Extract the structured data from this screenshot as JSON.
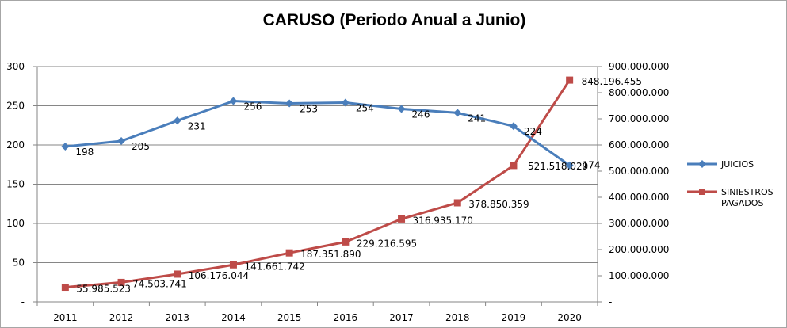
{
  "chart_data": {
    "type": "line",
    "title": "CARUSO (Periodo Anual a Junio)",
    "categories": [
      "2011",
      "2012",
      "2013",
      "2014",
      "2015",
      "2016",
      "2017",
      "2018",
      "2019",
      "2020"
    ],
    "y_left": {
      "min": 0,
      "max": 300,
      "step": 50,
      "tick_labels": [
        "-",
        "50",
        "100",
        "150",
        "200",
        "250",
        "300"
      ]
    },
    "y_right": {
      "min": 0,
      "max": 900000000,
      "step": 100000000,
      "tick_labels": [
        "-",
        "100.000.000",
        "200.000.000",
        "300.000.000",
        "400.000.000",
        "500.000.000",
        "600.000.000",
        "700.000.000",
        "800.000.000",
        "900.000.000"
      ]
    },
    "grid": true,
    "legend_position": "right",
    "series": [
      {
        "name": "JUICIOS",
        "axis": "left",
        "color": "#4a7ebb",
        "marker": "diamond",
        "values": [
          198,
          205,
          231,
          256,
          253,
          254,
          246,
          241,
          224,
          174
        ],
        "labels": [
          "198",
          "205",
          "231",
          "256",
          "253",
          "254",
          "246",
          "241",
          "224",
          "174"
        ]
      },
      {
        "name": "SINIESTROS PAGADOS",
        "legend_lines": [
          "SINIESTROS",
          "PAGADOS"
        ],
        "axis": "right",
        "color": "#be4b48",
        "marker": "square",
        "values": [
          55985523,
          74503741,
          106176044,
          141661742,
          187351890,
          229216595,
          316935170,
          378850359,
          521518029,
          848196455
        ],
        "labels": [
          "55.985.523",
          "74.503.741",
          "106.176.044",
          "141.661.742",
          "187.351.890",
          "229.216.595",
          "316.935.170",
          "378.850.359",
          "521.518.029",
          "848.196.455"
        ]
      }
    ]
  }
}
